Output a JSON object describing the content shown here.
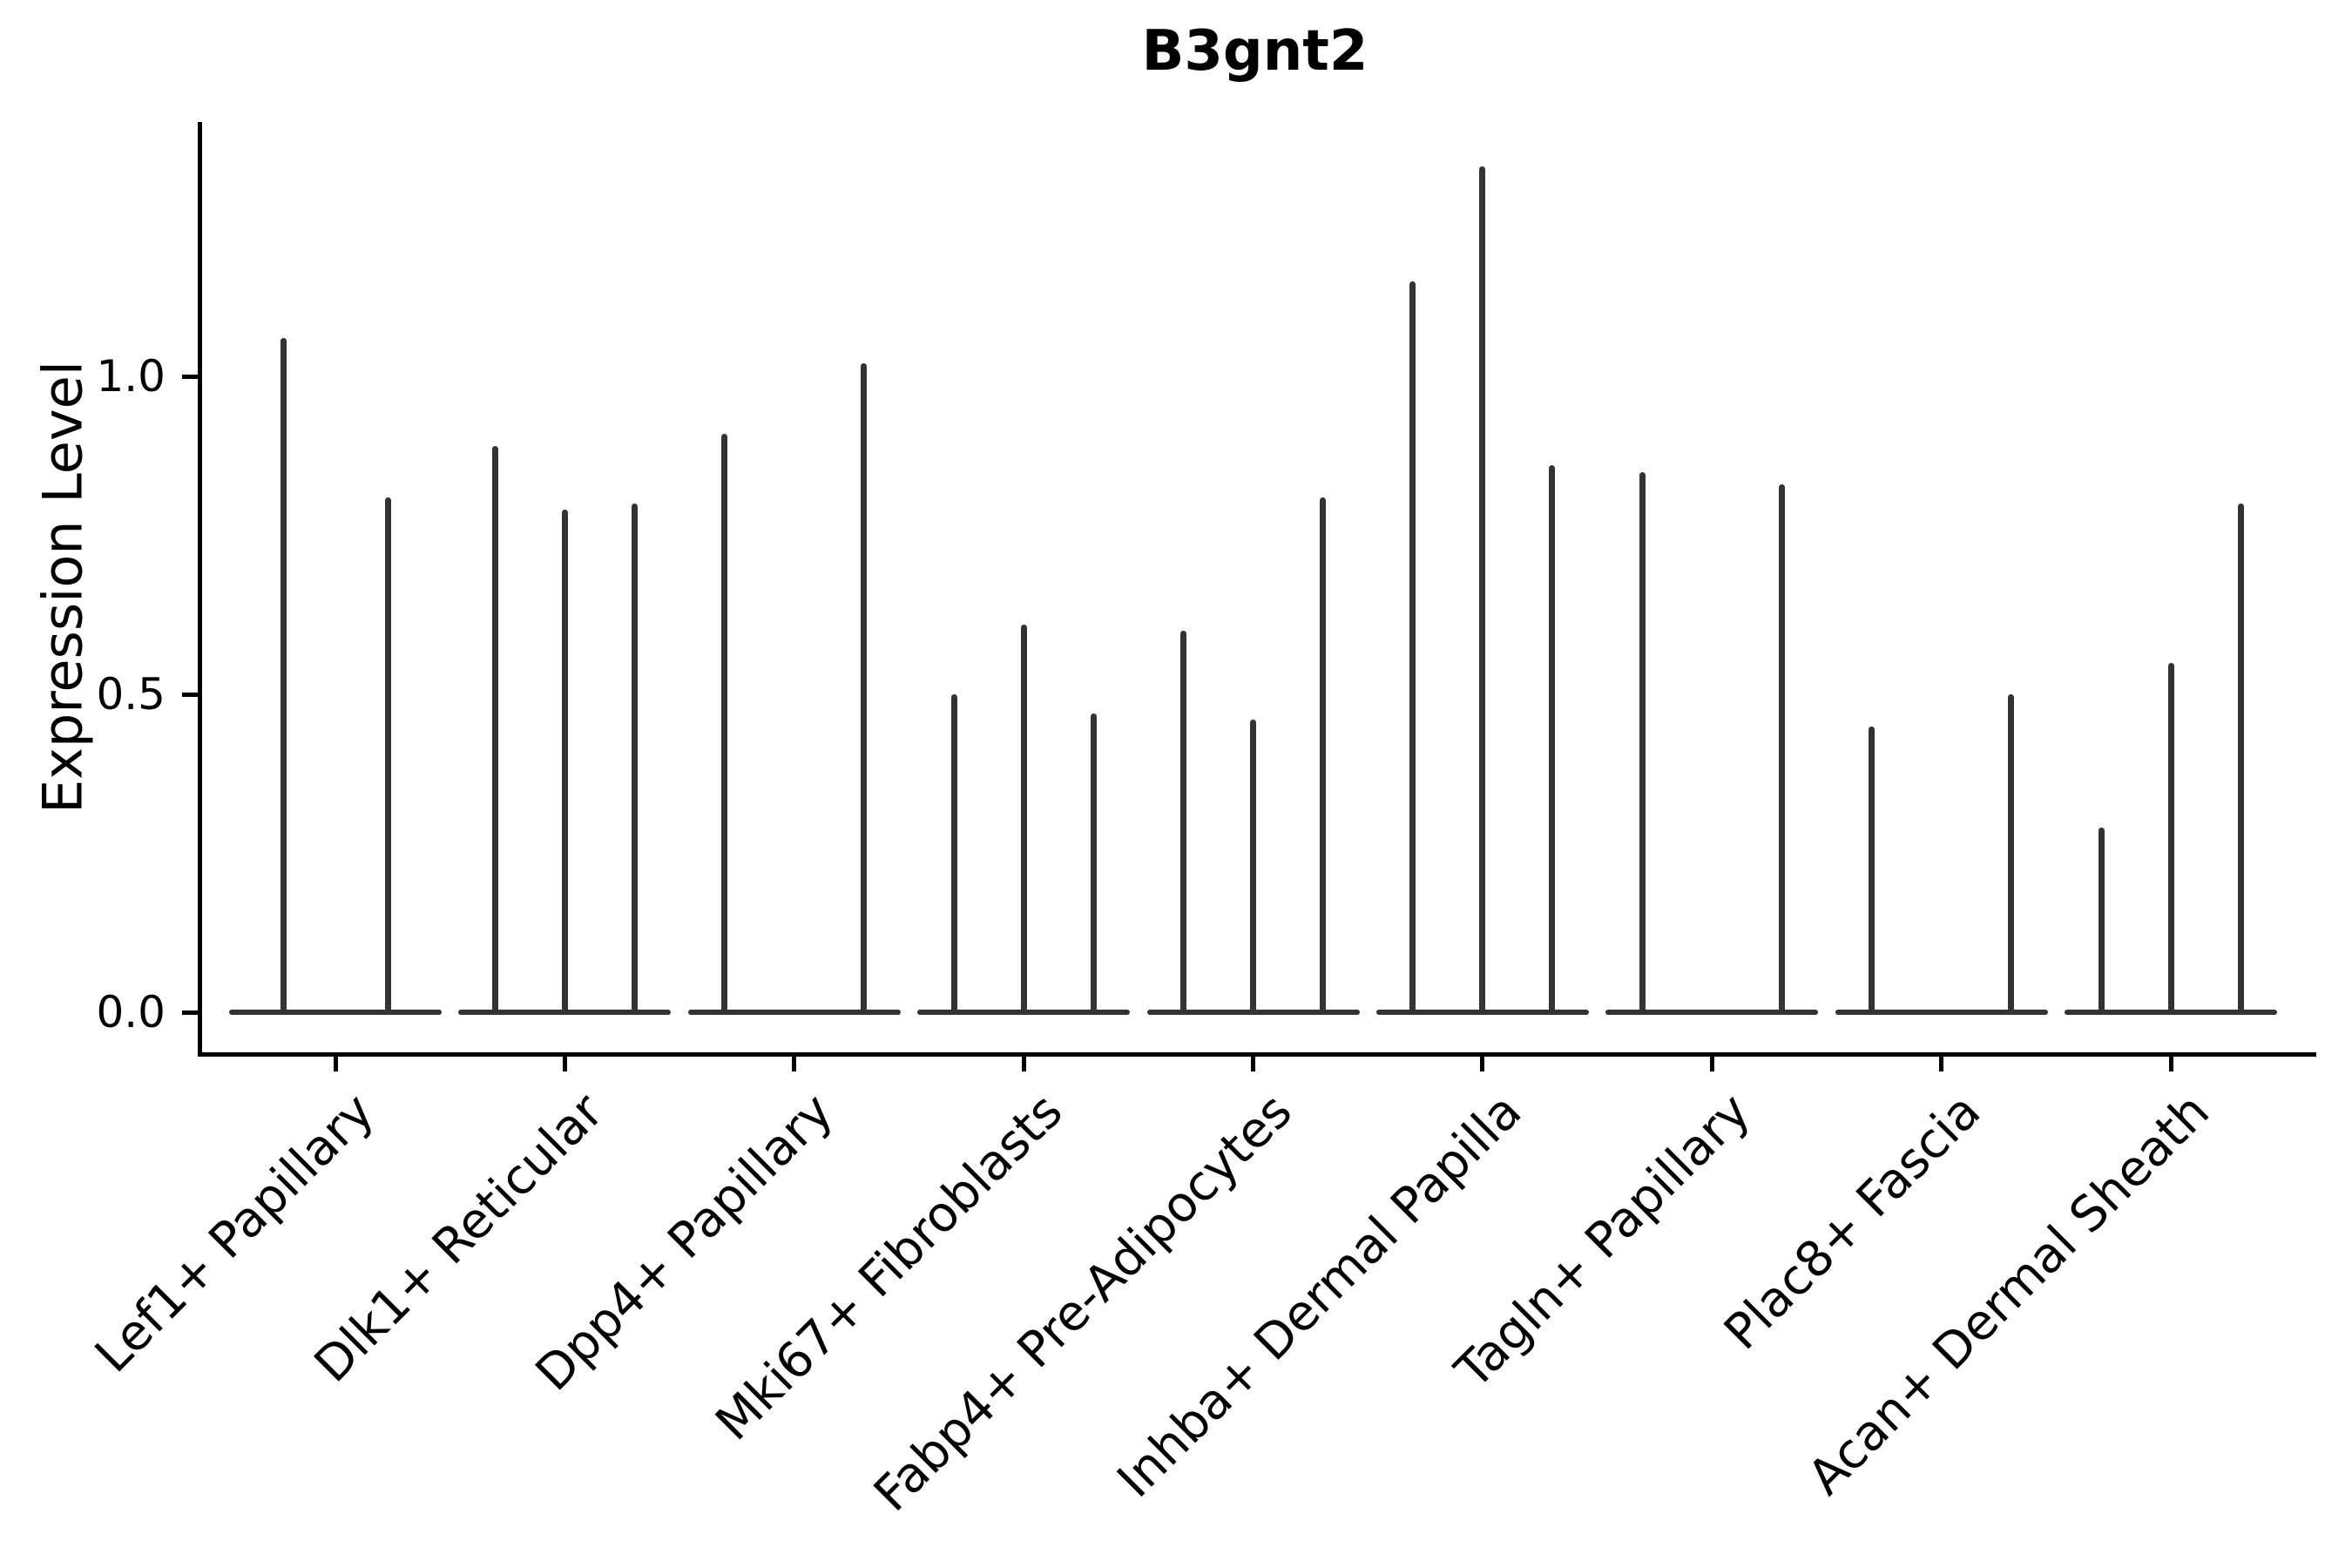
{
  "chart_data": {
    "type": "violin",
    "title": "B3gnt2",
    "ylabel": "Expression Level",
    "ylim": [
      0,
      1.4
    ],
    "yticks": [
      0,
      0.5,
      1.0
    ],
    "ytick_labels": [
      "0.0",
      "0.5",
      "1.0"
    ],
    "grid": false,
    "legend": false,
    "categories": [
      "Lef1+ Papillary",
      "Dlk1+ Reticular",
      "Dpp4+ Papillary",
      "Mki67+ Fibroblasts",
      "Fabp4+ Pre-Adipocytes",
      "Inhba+ Dermal Papilla",
      "Tagln+ Papillary",
      "Plac8+ Fascia",
      "Acan+ Dermal Sheath"
    ],
    "groups": [
      {
        "category": "Lef1+ Papillary",
        "violins": [
          {
            "offset": -60,
            "peak": 1.06
          },
          {
            "offset": 60,
            "peak": 0.81
          }
        ]
      },
      {
        "category": "Dlk1+ Reticular",
        "violins": [
          {
            "offset": -80,
            "peak": 0.89
          },
          {
            "offset": 0,
            "peak": 0.79
          },
          {
            "offset": 80,
            "peak": 0.8
          }
        ]
      },
      {
        "category": "Dpp4+ Papillary",
        "violins": [
          {
            "offset": -80,
            "peak": 0.91
          },
          {
            "offset": 80,
            "peak": 1.02
          }
        ]
      },
      {
        "category": "Mki67+ Fibroblasts",
        "violins": [
          {
            "offset": -80,
            "peak": 0.5
          },
          {
            "offset": 0,
            "peak": 0.61
          },
          {
            "offset": 80,
            "peak": 0.47
          }
        ]
      },
      {
        "category": "Fabp4+ Pre-Adipocytes",
        "violins": [
          {
            "offset": -80,
            "peak": 0.6
          },
          {
            "offset": 0,
            "peak": 0.46
          },
          {
            "offset": 80,
            "peak": 0.81
          }
        ]
      },
      {
        "category": "Inhba+ Dermal Papilla",
        "violins": [
          {
            "offset": -80,
            "peak": 1.15
          },
          {
            "offset": 0,
            "peak": 1.33
          },
          {
            "offset": 80,
            "peak": 0.86
          }
        ]
      },
      {
        "category": "Tagln+ Papillary",
        "violins": [
          {
            "offset": -80,
            "peak": 0.85
          },
          {
            "offset": 80,
            "peak": 0.83
          }
        ]
      },
      {
        "category": "Plac8+ Fascia",
        "violins": [
          {
            "offset": -80,
            "peak": 0.45
          },
          {
            "offset": 80,
            "peak": 0.5
          }
        ]
      },
      {
        "category": "Acan+ Dermal Sheath",
        "violins": [
          {
            "offset": -80,
            "peak": 0.29
          },
          {
            "offset": 0,
            "peak": 0.55
          },
          {
            "offset": 80,
            "peak": 0.8
          }
        ]
      }
    ],
    "violin_color": "#333333",
    "axis_color": "#000000"
  }
}
